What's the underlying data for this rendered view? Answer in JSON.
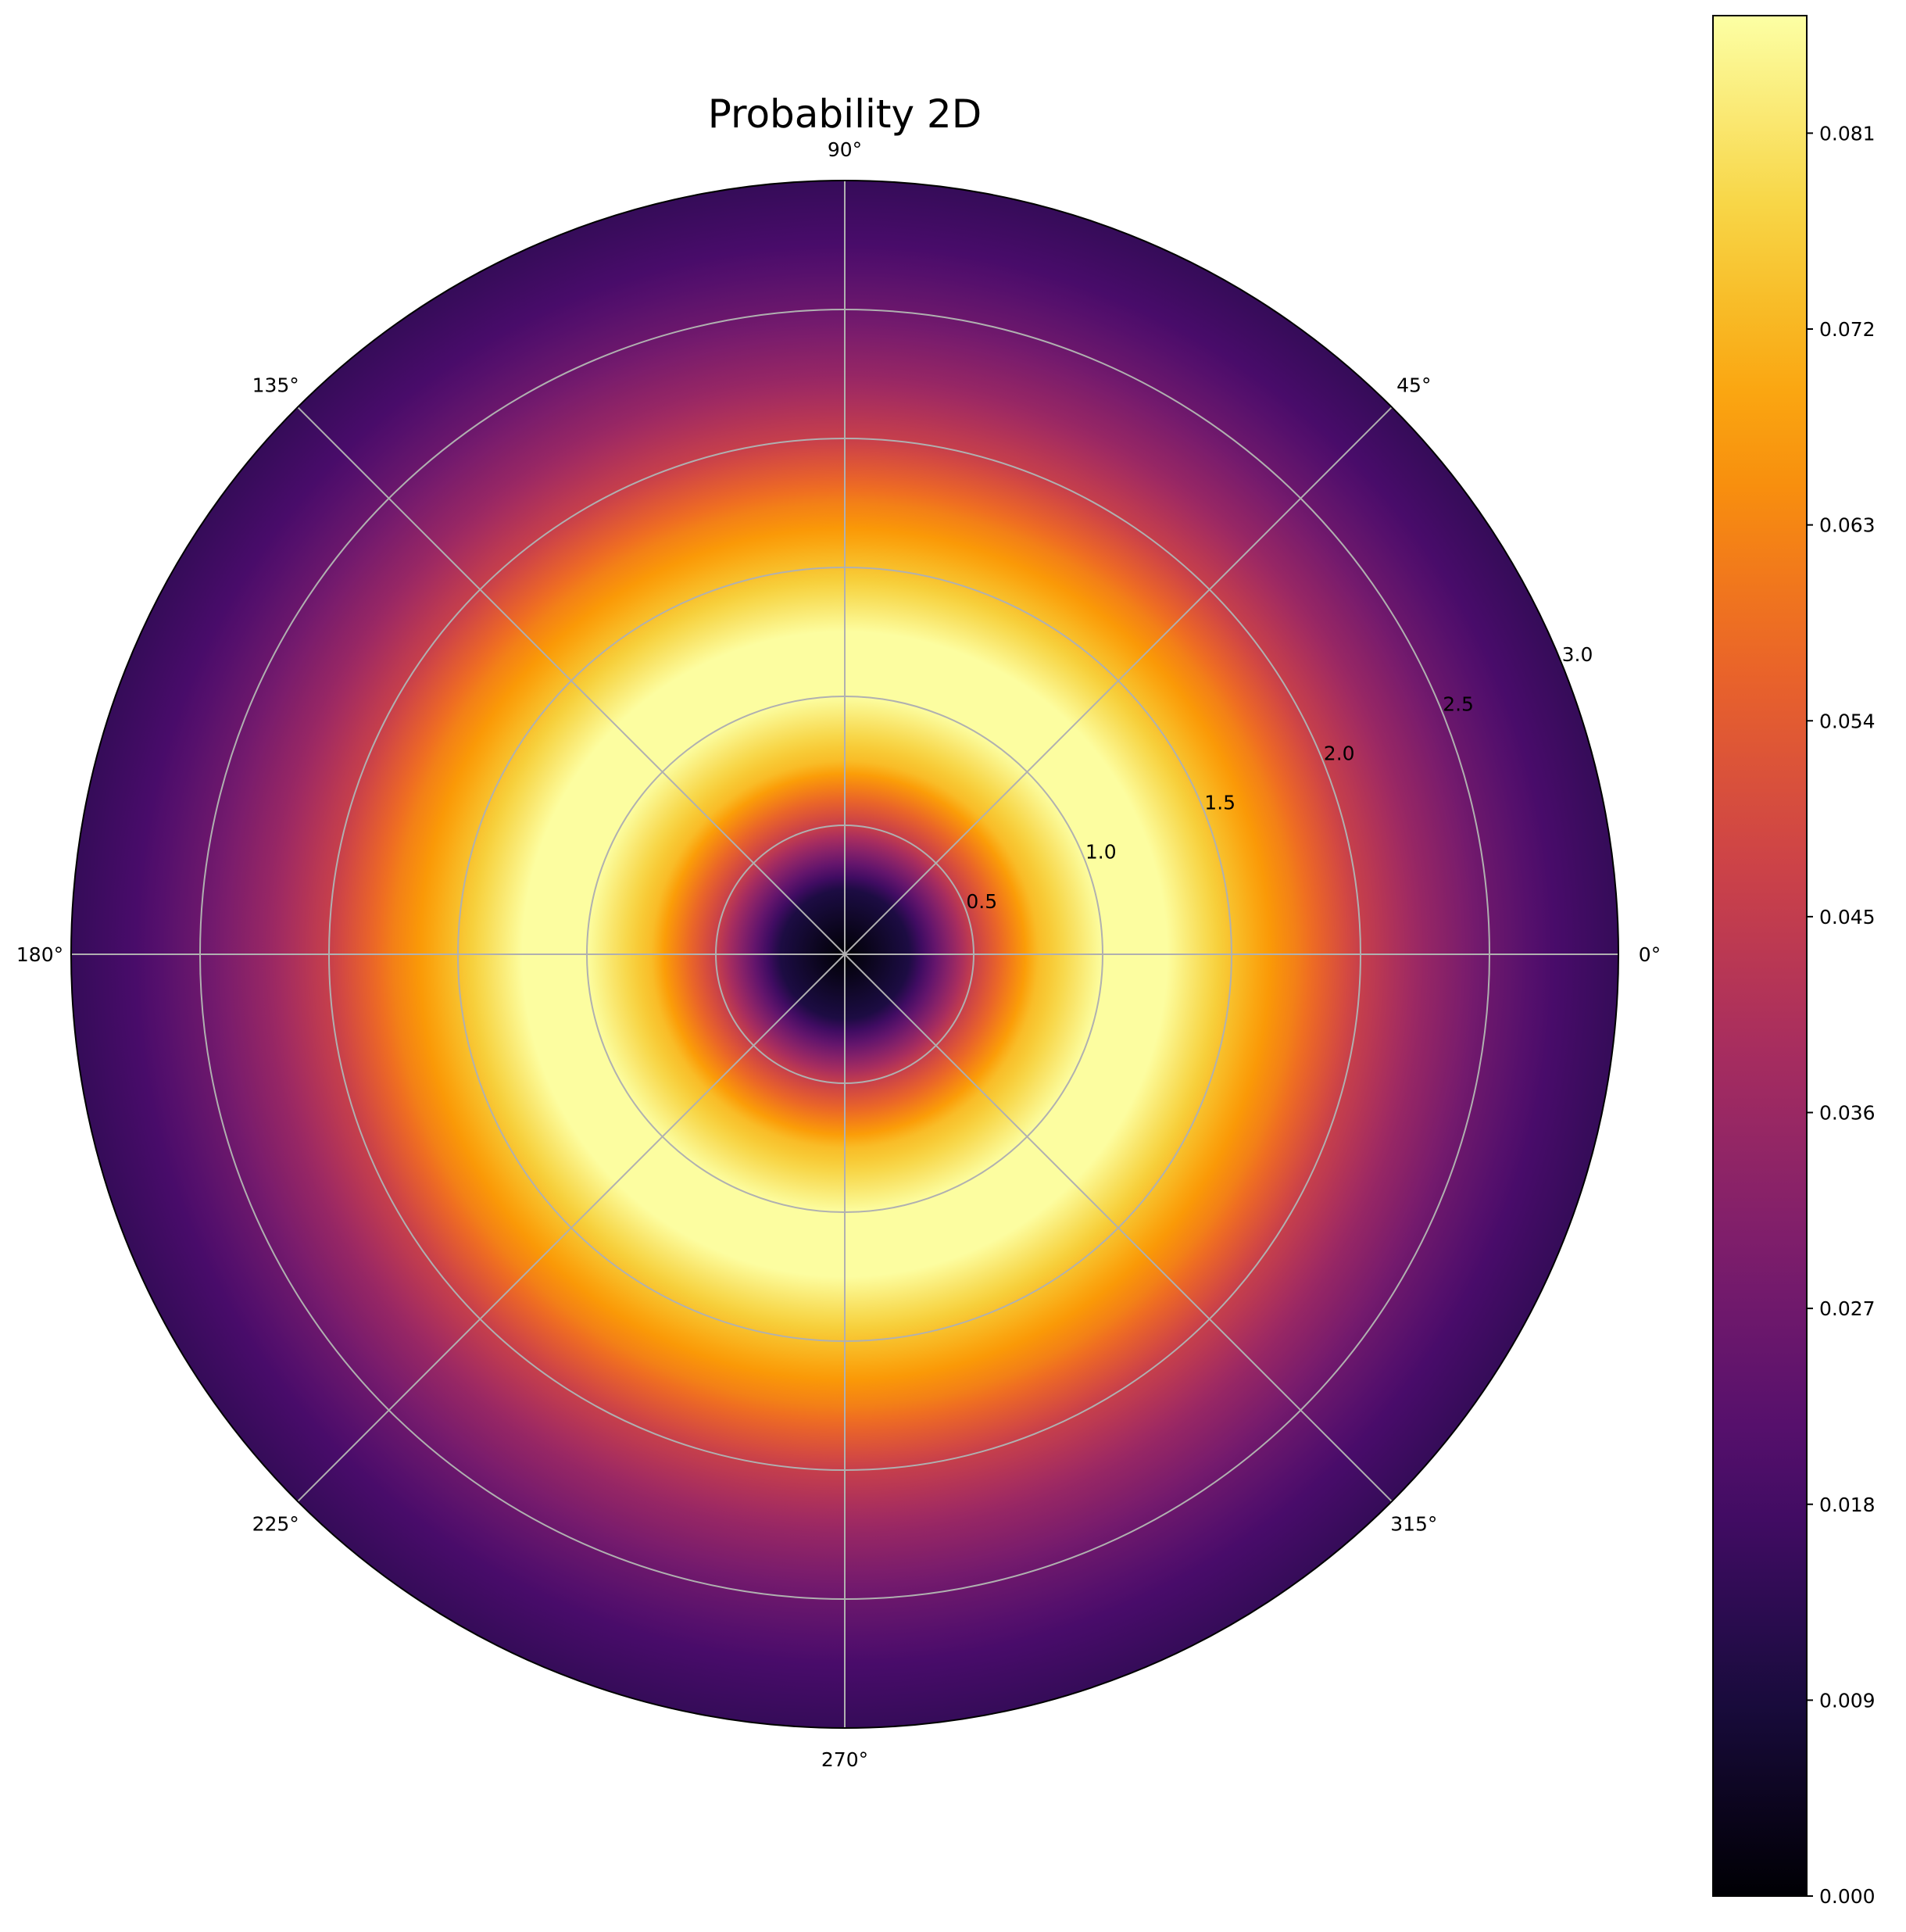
{
  "chart_data": {
    "type": "heatmap",
    "projection": "polar",
    "title": "Probability 2D",
    "colormap": "inferno",
    "colormap_stops": [
      "#000004",
      "#1b0c41",
      "#4a0c6b",
      "#781c6d",
      "#a52c60",
      "#cf4446",
      "#ed6925",
      "#fb9b06",
      "#f7d13d",
      "#fcffa4"
    ],
    "angle_ticks": [
      {
        "deg": 0,
        "label": "0°"
      },
      {
        "deg": 45,
        "label": "45°"
      },
      {
        "deg": 90,
        "label": "90°"
      },
      {
        "deg": 135,
        "label": "135°"
      },
      {
        "deg": 180,
        "label": "180°"
      },
      {
        "deg": 225,
        "label": "225°"
      },
      {
        "deg": 270,
        "label": "270°"
      },
      {
        "deg": 315,
        "label": "315°"
      }
    ],
    "radial_ticks": [
      {
        "r": 0.5,
        "label": "0.5"
      },
      {
        "r": 1.0,
        "label": "1.0"
      },
      {
        "r": 1.5,
        "label": "1.5"
      },
      {
        "r": 2.0,
        "label": "2.0"
      },
      {
        "r": 2.5,
        "label": "2.5"
      },
      {
        "r": 3.0,
        "label": "3.0"
      }
    ],
    "rlim": [
      0,
      3.0
    ],
    "grid": true,
    "radial_profile": {
      "r": [
        0.0,
        0.25,
        0.5,
        0.75,
        1.0,
        1.25,
        1.5,
        1.75,
        2.0,
        2.25,
        2.5,
        2.75,
        3.0
      ],
      "value": [
        0.0,
        0.01,
        0.046,
        0.073,
        0.086,
        0.086,
        0.074,
        0.062,
        0.046,
        0.035,
        0.026,
        0.019,
        0.015
      ]
    },
    "colorbar": {
      "vmin": 0.0,
      "vmax": 0.0864,
      "ticks": [
        {
          "v": 0.0,
          "label": "0.000"
        },
        {
          "v": 0.009,
          "label": "0.009"
        },
        {
          "v": 0.018,
          "label": "0.018"
        },
        {
          "v": 0.027,
          "label": "0.027"
        },
        {
          "v": 0.036,
          "label": "0.036"
        },
        {
          "v": 0.045,
          "label": "0.045"
        },
        {
          "v": 0.054,
          "label": "0.054"
        },
        {
          "v": 0.063,
          "label": "0.063"
        },
        {
          "v": 0.072,
          "label": "0.072"
        },
        {
          "v": 0.081,
          "label": "0.081"
        }
      ]
    }
  }
}
